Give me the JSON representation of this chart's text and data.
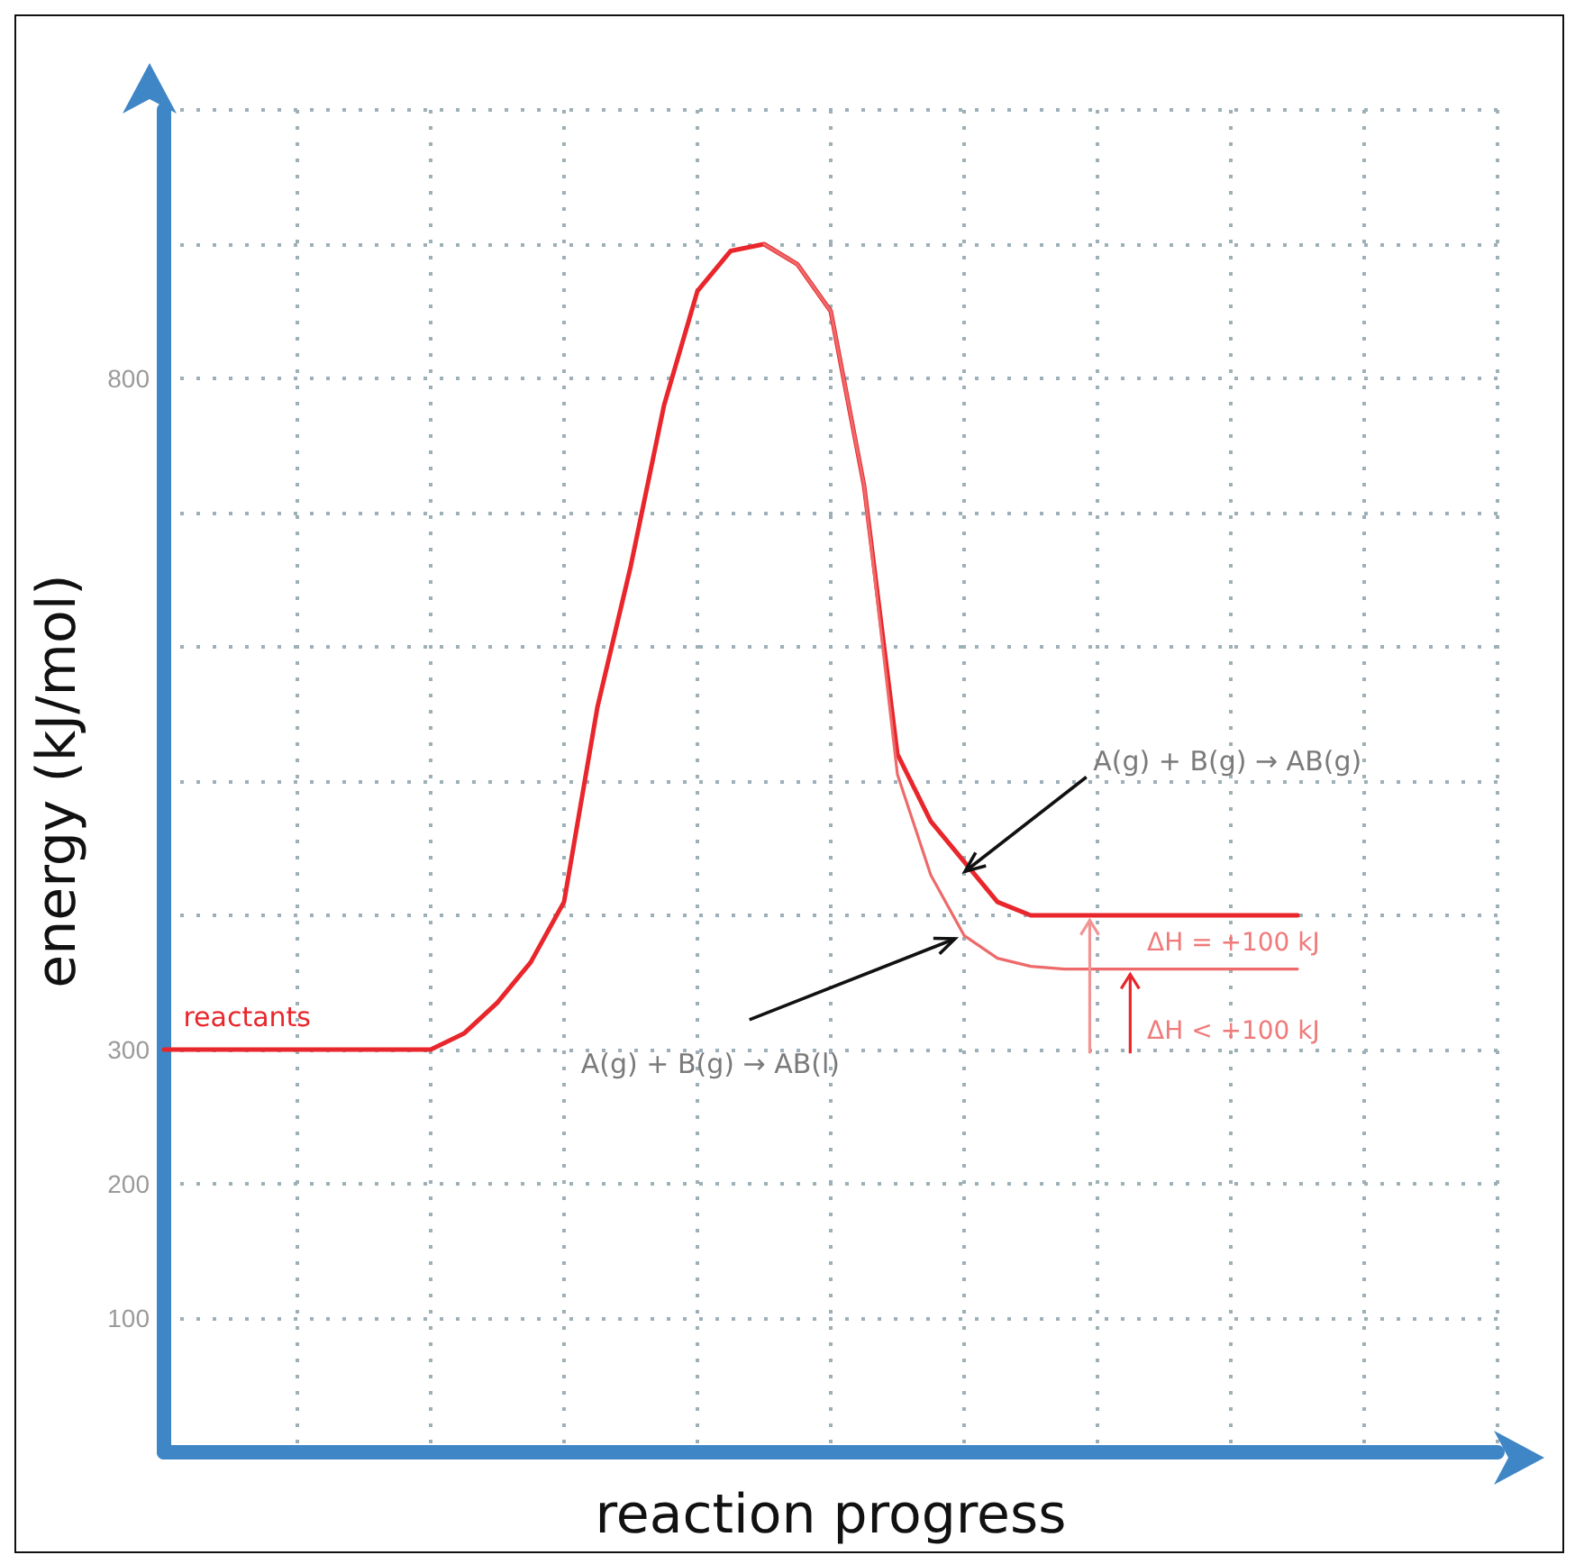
{
  "chart_data": {
    "type": "line",
    "xlabel": "reaction progress",
    "ylabel": "energy (kJ/mol)",
    "categories": [
      null,
      null,
      null,
      null,
      null,
      null,
      null,
      null,
      null,
      null,
      null,
      null,
      null,
      null,
      null,
      null,
      null,
      null,
      null,
      null,
      null,
      null,
      null,
      null,
      null,
      null,
      null,
      null,
      null,
      null,
      null,
      null,
      null,
      null,
      null,
      null,
      null,
      null,
      null,
      null,
      null
    ],
    "series": [
      {
        "color": "#e8262b",
        "values": [
          300,
          300,
          300,
          300,
          300,
          300,
          300,
          300,
          300,
          312,
          335,
          365,
          410,
          555,
          660,
          780,
          865,
          895,
          900,
          885,
          850,
          720,
          520,
          470,
          440,
          410,
          400,
          400,
          400,
          400,
          400,
          400,
          400,
          400,
          400,
          null,
          null,
          null,
          null,
          null,
          null
        ]
      },
      {
        "color": "#ee6a6a",
        "values": [
          null,
          null,
          null,
          null,
          null,
          null,
          null,
          null,
          null,
          null,
          null,
          null,
          null,
          null,
          null,
          null,
          null,
          null,
          900,
          885,
          850,
          720,
          505,
          430,
          385,
          368,
          362,
          360,
          360,
          360,
          360,
          360,
          360,
          360,
          360,
          null,
          null,
          null,
          null,
          null,
          null
        ]
      }
    ],
    "ylim": [
      0,
      1000
    ],
    "yticks": [
      100,
      200,
      300,
      {
        "value": 400,
        "label": null
      },
      {
        "value": 500,
        "label": null
      },
      {
        "value": 600,
        "label": null
      },
      {
        "value": 700,
        "label": null
      },
      800,
      {
        "value": 900,
        "label": null
      },
      {
        "value": 1000,
        "label": null
      }
    ],
    "grid": true,
    "marker": "none",
    "line_style": "solid",
    "tick_labels": "y",
    "annotations": [
      "reactants",
      "A(g) + B(g) → AB(g)",
      "A(g) + B(g) → AB(l)",
      "ΔH = +100 kJ",
      "ΔH < +100 kJ"
    ]
  }
}
